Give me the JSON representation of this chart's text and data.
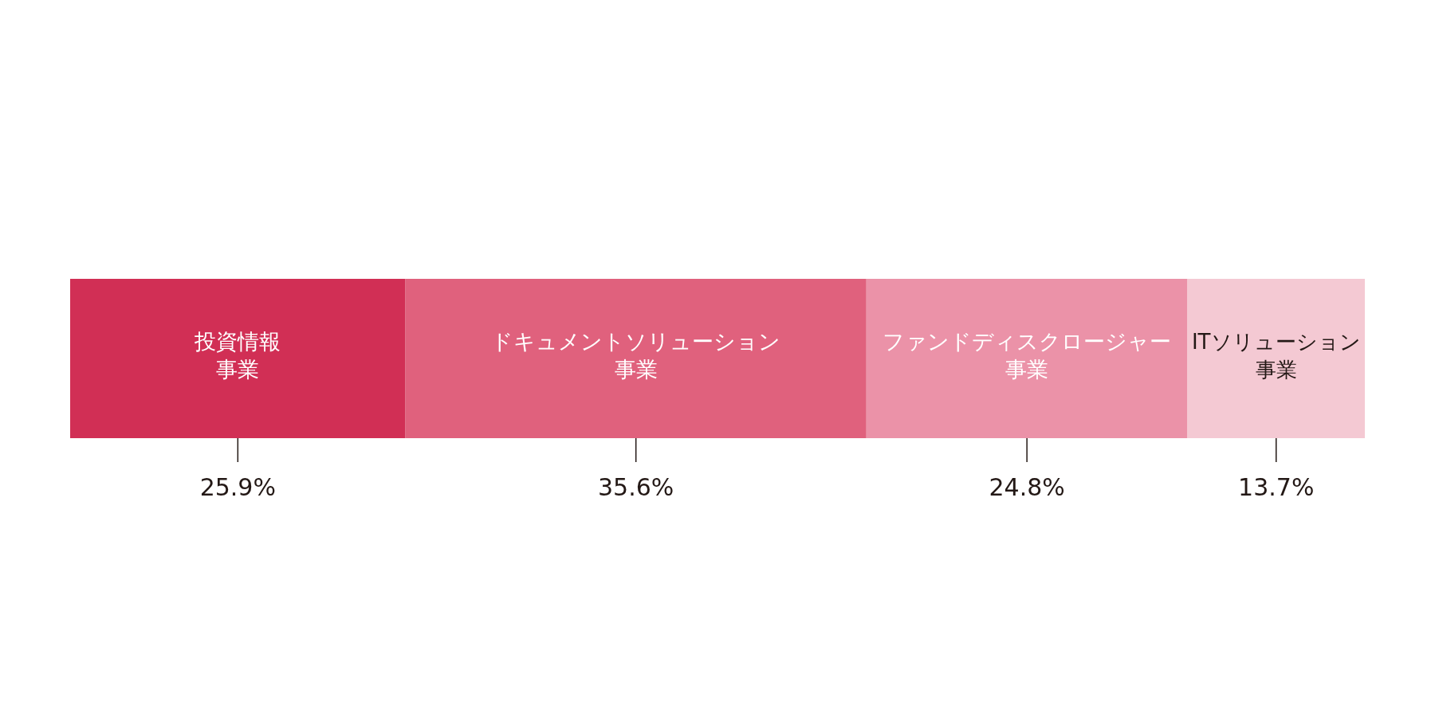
{
  "chart_data": {
    "type": "bar",
    "orientation": "horizontal",
    "stacked": true,
    "categories": [
      null
    ],
    "xlim": [
      0,
      100
    ],
    "tick_labels": false,
    "series": [
      {
        "name": "投資情報事業",
        "color": "#d12f55",
        "values": [
          25.9
        ],
        "value_labels": [
          "25.9%"
        ]
      },
      {
        "name": "ドキュメントソリューション事業",
        "color": "#e0617d",
        "values": [
          35.6
        ],
        "value_labels": [
          "35.6%"
        ]
      },
      {
        "name": "ファンドディスクロージャー事業",
        "color": "#eb92a8",
        "values": [
          24.8
        ],
        "value_labels": [
          "24.8%"
        ]
      },
      {
        "name": "ITソリューション事業",
        "color": "#f4c9d3",
        "values": [
          13.7
        ],
        "value_labels": [
          "13.7%"
        ]
      }
    ]
  }
}
